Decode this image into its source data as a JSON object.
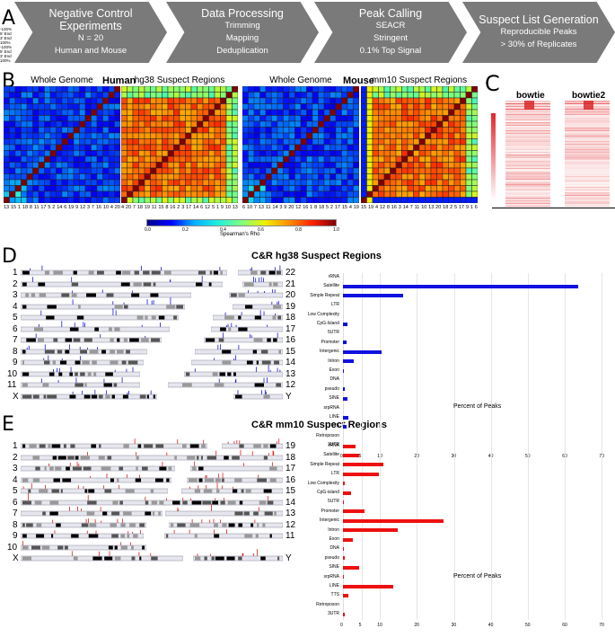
{
  "panelA": {
    "letter": "A",
    "steps": [
      {
        "title": "Negative Control Experiments",
        "lines": [
          "N = 20",
          "Human and Mouse"
        ]
      },
      {
        "title": "Data Processing",
        "lines": [
          "Trimming",
          "Mapping",
          "Deduplication"
        ]
      },
      {
        "title": "Peak Calling",
        "lines": [
          "SEACR",
          "Stringent",
          "0.1% Top Signal"
        ]
      },
      {
        "title": "Suspect List Generation",
        "lines": [
          "Reproducible Peaks",
          "> 30% of Replicates"
        ]
      }
    ],
    "colors": {
      "chevron": "#7a7a7a",
      "text": "#ffffff"
    }
  },
  "panelB": {
    "letter": "B",
    "human_label": "Human",
    "mouse_label": "Mouse",
    "heatmaps": [
      {
        "title": "Whole Genome",
        "palette": "low",
        "ticks": [
          "13",
          "15",
          "1",
          "18",
          "8",
          "11",
          "17",
          "5",
          "2",
          "14",
          "6",
          "19",
          "9",
          "12",
          "3",
          "7",
          "16",
          "10",
          "4",
          "20"
        ]
      },
      {
        "title": "hg38 Suspect Regions",
        "palette": "high",
        "ticks": [
          "4",
          "20",
          "7",
          "18",
          "19",
          "11",
          "15",
          "8",
          "16",
          "2",
          "3",
          "17",
          "14",
          "6",
          "12",
          "5",
          "1",
          "9",
          "10",
          "13"
        ]
      },
      {
        "title": "Whole Genome",
        "palette": "low",
        "ticks": [
          "6",
          "10",
          "7",
          "13",
          "11",
          "14",
          "3",
          "9",
          "20",
          "12",
          "16",
          "1",
          "8",
          "18",
          "5",
          "2",
          "17",
          "15",
          "4",
          "19"
        ]
      },
      {
        "title": "mm10 Suspect Regions",
        "palette": "high",
        "ticks": [
          "15",
          "19",
          "4",
          "12",
          "8",
          "16",
          "3",
          "14",
          "7",
          "11",
          "10",
          "13",
          "20",
          "18",
          "2",
          "5",
          "17",
          "9",
          "1",
          "6"
        ]
      }
    ],
    "colorbar": {
      "label": "Spearman's Rho",
      "ticks": [
        "0.0",
        "0.2",
        "0.4",
        "0.6",
        "0.8",
        "1.0"
      ],
      "range": [
        0,
        1
      ]
    }
  },
  "panelC": {
    "letter": "C",
    "columns": [
      "bowtie",
      "bowtie2"
    ],
    "colorbar_ticks": [
      "0.32",
      "0.24",
      "0.16",
      "0.08",
      "0.00"
    ],
    "x_ticks": [
      "-100%",
      "5' End",
      "3' End",
      "100%",
      "-100%",
      "5' End",
      "3' End",
      "100%"
    ],
    "color": "#e3262a"
  },
  "panelD": {
    "letter": "D",
    "title": "C&R hg38 Suspect Regions",
    "left_chromosomes": [
      "1",
      "2",
      "3",
      "4",
      "5",
      "6",
      "7",
      "8",
      "9",
      "10",
      "11",
      "X"
    ],
    "right_chromosomes": [
      "22",
      "21",
      "20",
      "19",
      "18",
      "17",
      "16",
      "15",
      "14",
      "13",
      "12",
      "Y"
    ],
    "mark_color": "#1a1adc"
  },
  "panelE": {
    "letter": "E",
    "title": "C&R mm10 Suspect Regions",
    "left_chromosomes": [
      "1",
      "2",
      "3",
      "4",
      "5",
      "6",
      "7",
      "8",
      "9",
      "10",
      "X"
    ],
    "right_chromosomes": [
      "19",
      "18",
      "17",
      "16",
      "15",
      "14",
      "13",
      "12",
      "11",
      "",
      "Y"
    ],
    "mark_color": "#e02020"
  },
  "chart_data": [
    {
      "type": "bar",
      "orientation": "horizontal",
      "title": "C&R hg38 Suspect Regions",
      "categories": [
        "rRNA",
        "Satellite",
        "Simple Repeat",
        "LTR",
        "Low Complexity",
        "CpG-Island",
        "5UTR",
        "Promoter",
        "Intergenic",
        "Intron",
        "Exon",
        "DNA",
        "pseudo",
        "SINE",
        "srpRNA",
        "LINE",
        "TTS",
        "Retroposon",
        "3UTR"
      ],
      "values": [
        0,
        63.6,
        16.3,
        0,
        0,
        1.2,
        0,
        0.9,
        10.5,
        2.9,
        0.2,
        0,
        0.4,
        1.2,
        0,
        1.5,
        0.9,
        0,
        0
      ],
      "xlabel": "Percent of Peaks",
      "xlim": [
        0,
        70
      ],
      "xticks": [
        "0",
        "5",
        "10",
        "20",
        "30",
        "40",
        "50",
        "60",
        "70"
      ],
      "grid": true,
      "color": "#1010e0"
    },
    {
      "type": "bar",
      "orientation": "horizontal",
      "title": "C&R mm10 Suspect Regions",
      "categories": [
        "rRNA",
        "Satellite",
        "Simple Repeat",
        "LTR",
        "Low Complexity",
        "CpG-island",
        "5UTR",
        "Promoter",
        "Intergenic",
        "Intron",
        "Exon",
        "DNA",
        "pseudo",
        "SINE",
        "srpRNA",
        "LINE",
        "TTS",
        "Retroposon",
        "3UTR"
      ],
      "values": [
        3.4,
        4.4,
        10.9,
        9.8,
        0.5,
        2.1,
        0.2,
        5.8,
        27.1,
        14.8,
        2.7,
        0.2,
        0.4,
        4.4,
        0.2,
        13.6,
        1.4,
        0,
        0.5
      ],
      "xlabel": "Percent of Peaks",
      "xlim": [
        0,
        70
      ],
      "xticks": [
        "0",
        "5",
        "10",
        "20",
        "30",
        "40",
        "50",
        "60",
        "70"
      ],
      "grid": true,
      "color": "#ee1010"
    }
  ]
}
